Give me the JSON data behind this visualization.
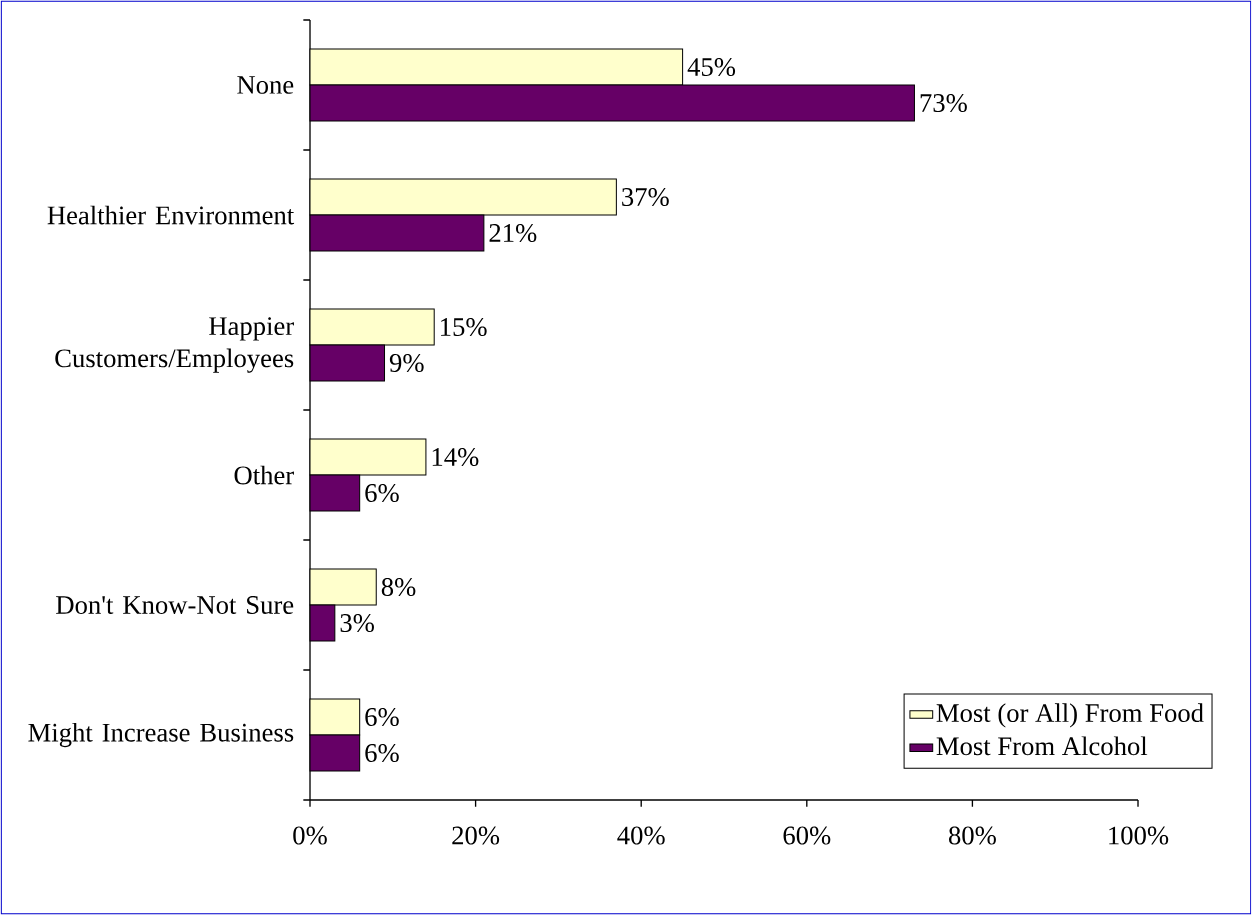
{
  "chart_data": {
    "type": "bar",
    "orientation": "horizontal",
    "categories": [
      "None",
      "Healthier Environment",
      "Happier Customers/Employees",
      "Other",
      "Don't Know-Not Sure",
      "Might Increase Business"
    ],
    "series": [
      {
        "name": "Most (or All) From Food",
        "color": "#ffffcc",
        "values": [
          45,
          37,
          15,
          14,
          8,
          6
        ],
        "value_labels": [
          "45%",
          "37%",
          "15%",
          "14%",
          "8%",
          "6%"
        ]
      },
      {
        "name": "Most From Alcohol",
        "color": "#660066",
        "values": [
          73,
          21,
          9,
          6,
          3,
          6
        ],
        "value_labels": [
          "73%",
          "21%",
          "9%",
          "6%",
          "3%",
          "6%"
        ]
      }
    ],
    "xlim": [
      0,
      100
    ],
    "xticks": [
      {
        "value": 0,
        "label": "0%"
      },
      {
        "value": 20,
        "label": "20%"
      },
      {
        "value": 40,
        "label": "40%"
      },
      {
        "value": 60,
        "label": "60%"
      },
      {
        "value": 80,
        "label": "80%"
      },
      {
        "value": 100,
        "label": "100%"
      }
    ],
    "grid": false,
    "legend": "bottom right"
  }
}
